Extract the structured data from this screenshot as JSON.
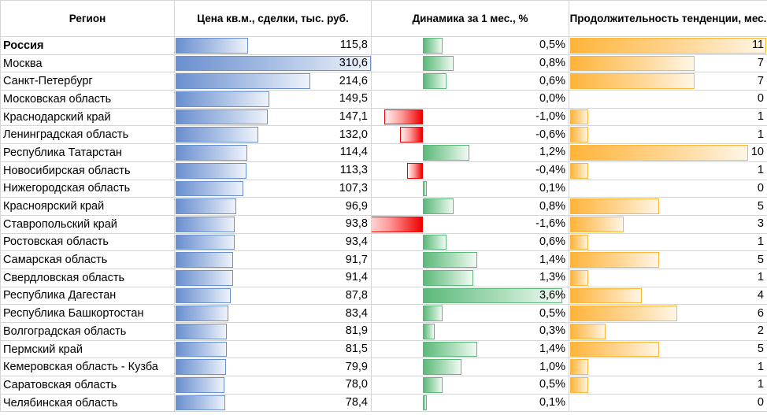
{
  "headers": {
    "region": "Регион",
    "price": "Цена кв.м., сделки, тыс. руб.",
    "change": "Динамика за 1 мес., %",
    "duration": "Продолжительность тенденции, мес."
  },
  "colors": {
    "price_bar": "#6a8fcf",
    "positive_bar": "#5cb87a",
    "negative_bar": "#ee0000",
    "duration_bar": "#ffb43a"
  },
  "scales": {
    "price_max": 310.6,
    "change_max_abs": 3.6,
    "duration_max": 11
  },
  "rows": [
    {
      "region": "Россия",
      "price": "115,8",
      "price_value": 115.8,
      "change": "0,5%",
      "change_value": 0.5,
      "duration": "11",
      "duration_value": 11,
      "bold": true
    },
    {
      "region": "Москва",
      "price": "310,6",
      "price_value": 310.6,
      "change": "0,8%",
      "change_value": 0.8,
      "duration": "7",
      "duration_value": 7
    },
    {
      "region": "Санкт-Петербург",
      "price": "214,6",
      "price_value": 214.6,
      "change": "0,6%",
      "change_value": 0.6,
      "duration": "7",
      "duration_value": 7
    },
    {
      "region": "Московская область",
      "price": "149,5",
      "price_value": 149.5,
      "change": "0,0%",
      "change_value": 0.0,
      "duration": "0",
      "duration_value": 0
    },
    {
      "region": "Краснодарский край",
      "price": "147,1",
      "price_value": 147.1,
      "change": "-1,0%",
      "change_value": -1.0,
      "duration": "1",
      "duration_value": 1
    },
    {
      "region": "Ленинградская область",
      "price": "132,0",
      "price_value": 132.0,
      "change": "-0,6%",
      "change_value": -0.6,
      "duration": "1",
      "duration_value": 1
    },
    {
      "region": "Республика Татарстан",
      "price": "114,4",
      "price_value": 114.4,
      "change": "1,2%",
      "change_value": 1.2,
      "duration": "10",
      "duration_value": 10
    },
    {
      "region": "Новосибирская область",
      "price": "113,3",
      "price_value": 113.3,
      "change": "-0,4%",
      "change_value": -0.4,
      "duration": "1",
      "duration_value": 1
    },
    {
      "region": "Нижегородская область",
      "price": "107,3",
      "price_value": 107.3,
      "change": "0,1%",
      "change_value": 0.1,
      "duration": "0",
      "duration_value": 0
    },
    {
      "region": "Красноярский край",
      "price": "96,9",
      "price_value": 96.9,
      "change": "0,8%",
      "change_value": 0.8,
      "duration": "5",
      "duration_value": 5
    },
    {
      "region": "Ставропольский край",
      "price": "93,8",
      "price_value": 93.8,
      "change": "-1,6%",
      "change_value": -1.6,
      "duration": "3",
      "duration_value": 3
    },
    {
      "region": "Ростовская область",
      "price": "93,4",
      "price_value": 93.4,
      "change": "0,6%",
      "change_value": 0.6,
      "duration": "1",
      "duration_value": 1
    },
    {
      "region": "Самарская область",
      "price": "91,7",
      "price_value": 91.7,
      "change": "1,4%",
      "change_value": 1.4,
      "duration": "5",
      "duration_value": 5
    },
    {
      "region": "Свердловская область",
      "price": "91,4",
      "price_value": 91.4,
      "change": "1,3%",
      "change_value": 1.3,
      "duration": "1",
      "duration_value": 1
    },
    {
      "region": "Республика Дагестан",
      "price": "87,8",
      "price_value": 87.8,
      "change": "3,6%",
      "change_value": 3.6,
      "duration": "4",
      "duration_value": 4
    },
    {
      "region": "Республика Башкортостан",
      "price": "83,4",
      "price_value": 83.4,
      "change": "0,5%",
      "change_value": 0.5,
      "duration": "6",
      "duration_value": 6
    },
    {
      "region": "Волгоградская область",
      "price": "81,9",
      "price_value": 81.9,
      "change": "0,3%",
      "change_value": 0.3,
      "duration": "2",
      "duration_value": 2
    },
    {
      "region": "Пермский край",
      "price": "81,5",
      "price_value": 81.5,
      "change": "1,4%",
      "change_value": 1.4,
      "duration": "5",
      "duration_value": 5
    },
    {
      "region": "Кемеровская область - Кузба",
      "price": "79,9",
      "price_value": 79.9,
      "change": "1,0%",
      "change_value": 1.0,
      "duration": "1",
      "duration_value": 1
    },
    {
      "region": "Саратовская область",
      "price": "78,0",
      "price_value": 78.0,
      "change": "0,5%",
      "change_value": 0.5,
      "duration": "1",
      "duration_value": 1
    },
    {
      "region": "Челябинская область",
      "price": "78,4",
      "price_value": 78.4,
      "change": "0,1%",
      "change_value": 0.1,
      "duration": "0",
      "duration_value": 0
    }
  ]
}
